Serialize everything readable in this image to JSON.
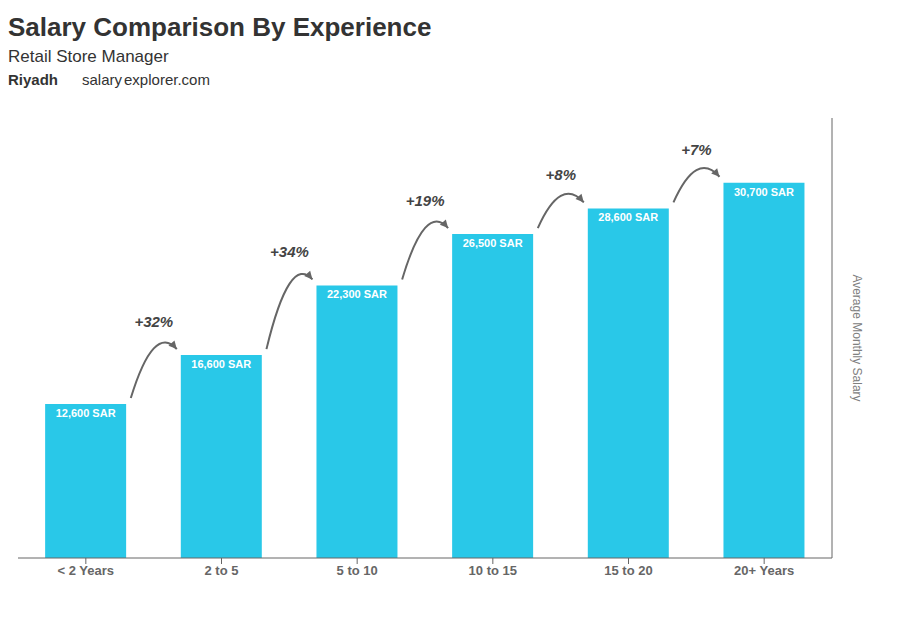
{
  "chart_data": {
    "type": "bar",
    "title": "Salary Comparison By Experience",
    "subtitle": "Retail Store Manager",
    "ylabel": "Average Monthly Salary",
    "categories": [
      "< 2 Years",
      "2 to 5",
      "5 to 10",
      "10 to 15",
      "15 to 20",
      "20+ Years"
    ],
    "values": [
      12600,
      16600,
      22300,
      26500,
      28600,
      30700
    ],
    "value_labels": [
      "12,600 SAR",
      "16,600 SAR",
      "22,300 SAR",
      "26,500 SAR",
      "28,600 SAR",
      "30,700 SAR"
    ],
    "data_labels": true,
    "color": "#29c8e8",
    "ylim": [
      0,
      36000
    ],
    "tick_labels": "x",
    "grid": false,
    "annotations": [
      {
        "text": "Riyadh"
      },
      {
        "text": "+32%",
        "category": "2 to 5"
      },
      {
        "text": "+34%",
        "category": "5 to 10"
      },
      {
        "text": "+19%",
        "category": "10 to 15"
      },
      {
        "text": "+8%",
        "category": "15 to 20"
      },
      {
        "text": "+7%",
        "category": "20+ Years"
      },
      {
        "text": "salary"
      },
      {
        "text": "explorer.com"
      }
    ]
  }
}
